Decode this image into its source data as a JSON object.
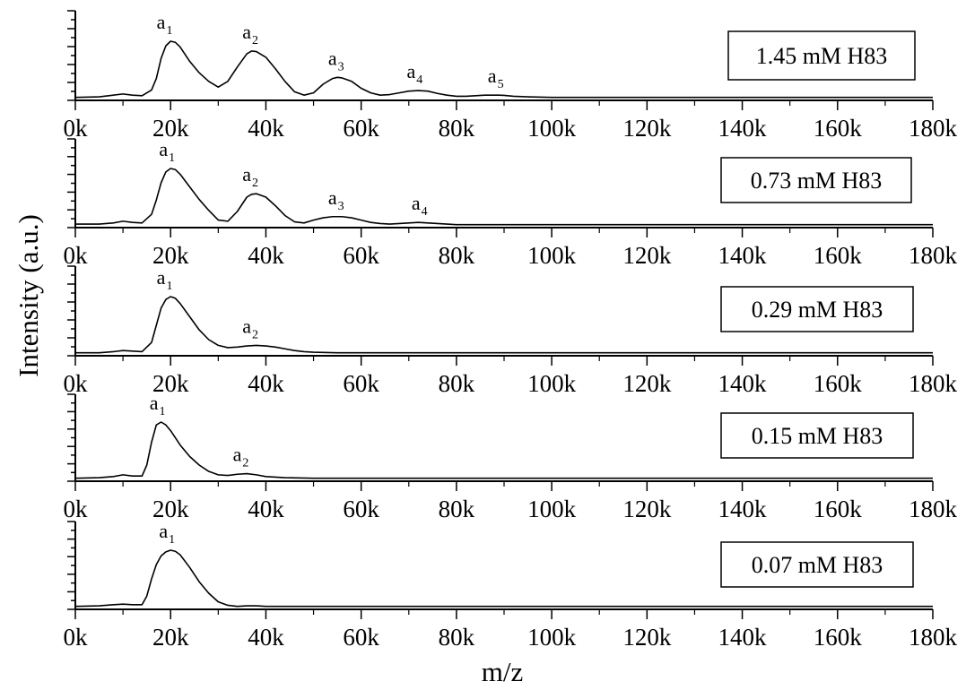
{
  "figure": {
    "ylabel": "Intensity (a.u.)",
    "xlabel": "m/z"
  },
  "chart_data": {
    "type": "line",
    "xlabel": "m/z",
    "ylabel": "Intensity (a.u.)",
    "xlim": [
      0,
      180000
    ],
    "ylim": [
      0,
      1
    ],
    "x_tick_values": [
      0,
      20000,
      40000,
      60000,
      80000,
      100000,
      120000,
      140000,
      160000,
      180000
    ],
    "x_tick_labels": [
      "0k",
      "20k",
      "40k",
      "60k",
      "80k",
      "100k",
      "120k",
      "140k",
      "160k",
      "180k"
    ],
    "grid": false,
    "legend_position": "top-right",
    "panels": [
      {
        "label": "1.45 mM H83",
        "series": [
          {
            "x": [
              0,
              5000,
              8000,
              10000,
              12000,
              14000,
              16000,
              17000,
              18000,
              19000,
              20000,
              21000,
              22000,
              24000,
              26000,
              28000,
              30000,
              32000,
              34000,
              36000,
              37000,
              38000,
              40000,
              42000,
              44000,
              46000,
              48000,
              50000,
              52000,
              54000,
              55000,
              56000,
              58000,
              60000,
              62000,
              64000,
              66000,
              68000,
              70000,
              72000,
              74000,
              76000,
              78000,
              80000,
              82000,
              84000,
              86000,
              88000,
              89000,
              90000,
              92000,
              95000,
              100000,
              110000,
              120000,
              130000,
              140000,
              150000,
              160000,
              170000,
              180000
            ],
            "y": [
              0.02,
              0.03,
              0.06,
              0.08,
              0.06,
              0.05,
              0.15,
              0.35,
              0.7,
              0.92,
              1.0,
              0.98,
              0.9,
              0.65,
              0.45,
              0.3,
              0.2,
              0.3,
              0.55,
              0.78,
              0.83,
              0.82,
              0.72,
              0.52,
              0.3,
              0.12,
              0.06,
              0.1,
              0.25,
              0.35,
              0.37,
              0.36,
              0.3,
              0.18,
              0.1,
              0.06,
              0.07,
              0.1,
              0.13,
              0.14,
              0.13,
              0.09,
              0.06,
              0.04,
              0.04,
              0.05,
              0.06,
              0.06,
              0.06,
              0.055,
              0.04,
              0.03,
              0.02,
              0.02,
              0.02,
              0.02,
              0.02,
              0.02,
              0.02,
              0.02,
              0.02
            ]
          }
        ],
        "peaks": [
          {
            "main": "a",
            "sub": "1",
            "x": 19500,
            "y": 1.0
          },
          {
            "main": "a",
            "sub": "2",
            "x": 37500,
            "y": 0.83
          },
          {
            "main": "a",
            "sub": "3",
            "x": 55500,
            "y": 0.37
          },
          {
            "main": "a",
            "sub": "4",
            "x": 72000,
            "y": 0.14
          },
          {
            "main": "a",
            "sub": "5",
            "x": 89000,
            "y": 0.06
          }
        ]
      },
      {
        "label": "0.73 mM H83",
        "series": [
          {
            "x": [
              0,
              5000,
              8000,
              10000,
              12000,
              14000,
              16000,
              17000,
              18000,
              19000,
              20000,
              21000,
              22000,
              24000,
              26000,
              28000,
              30000,
              32000,
              34000,
              36000,
              37000,
              38000,
              40000,
              42000,
              44000,
              46000,
              48000,
              50000,
              52000,
              54000,
              56000,
              58000,
              60000,
              62000,
              64000,
              66000,
              68000,
              70000,
              72000,
              74000,
              76000,
              78000,
              80000,
              90000,
              100000,
              120000,
              140000,
              160000,
              180000
            ],
            "y": [
              0.03,
              0.03,
              0.05,
              0.08,
              0.06,
              0.05,
              0.2,
              0.45,
              0.75,
              0.94,
              1.0,
              0.98,
              0.9,
              0.68,
              0.46,
              0.27,
              0.1,
              0.08,
              0.25,
              0.5,
              0.55,
              0.56,
              0.5,
              0.35,
              0.18,
              0.07,
              0.05,
              0.1,
              0.14,
              0.16,
              0.16,
              0.14,
              0.1,
              0.06,
              0.04,
              0.03,
              0.04,
              0.05,
              0.06,
              0.05,
              0.04,
              0.03,
              0.02,
              0.02,
              0.02,
              0.02,
              0.02,
              0.02,
              0.02
            ]
          }
        ],
        "peaks": [
          {
            "main": "a",
            "sub": "1",
            "x": 20000,
            "y": 1.0
          },
          {
            "main": "a",
            "sub": "2",
            "x": 37500,
            "y": 0.56
          },
          {
            "main": "a",
            "sub": "3",
            "x": 55500,
            "y": 0.16
          },
          {
            "main": "a",
            "sub": "4",
            "x": 73000,
            "y": 0.06
          }
        ]
      },
      {
        "label": "0.29 mM H83",
        "series": [
          {
            "x": [
              0,
              5000,
              8000,
              10000,
              12000,
              14000,
              16000,
              17000,
              18000,
              19000,
              20000,
              21000,
              22000,
              24000,
              26000,
              28000,
              30000,
              32000,
              34000,
              36000,
              38000,
              40000,
              42000,
              44000,
              46000,
              48000,
              50000,
              55000,
              60000,
              80000,
              100000,
              120000,
              140000,
              160000,
              180000
            ],
            "y": [
              0.02,
              0.02,
              0.04,
              0.06,
              0.05,
              0.04,
              0.2,
              0.5,
              0.8,
              0.95,
              1.0,
              0.97,
              0.88,
              0.65,
              0.42,
              0.25,
              0.15,
              0.11,
              0.12,
              0.14,
              0.15,
              0.14,
              0.12,
              0.09,
              0.06,
              0.04,
              0.03,
              0.02,
              0.02,
              0.02,
              0.02,
              0.02,
              0.02,
              0.02,
              0.02
            ]
          }
        ],
        "peaks": [
          {
            "main": "a",
            "sub": "1",
            "x": 19500,
            "y": 1.0
          },
          {
            "main": "a",
            "sub": "2",
            "x": 37500,
            "y": 0.15
          }
        ]
      },
      {
        "label": "0.15 mM H83",
        "series": [
          {
            "x": [
              0,
              5000,
              8000,
              10000,
              12000,
              14000,
              15000,
              16000,
              17000,
              18000,
              19000,
              20000,
              22000,
              24000,
              26000,
              28000,
              30000,
              32000,
              34000,
              36000,
              38000,
              40000,
              44000,
              50000,
              60000,
              80000,
              100000,
              120000,
              140000,
              160000,
              180000
            ],
            "y": [
              0.02,
              0.03,
              0.05,
              0.08,
              0.06,
              0.06,
              0.25,
              0.65,
              0.95,
              1.0,
              0.95,
              0.85,
              0.6,
              0.4,
              0.25,
              0.14,
              0.08,
              0.07,
              0.09,
              0.1,
              0.08,
              0.05,
              0.03,
              0.02,
              0.02,
              0.02,
              0.02,
              0.02,
              0.02,
              0.02,
              0.02
            ]
          }
        ],
        "peaks": [
          {
            "main": "a",
            "sub": "1",
            "x": 18000,
            "y": 1.0
          },
          {
            "main": "a",
            "sub": "2",
            "x": 35500,
            "y": 0.1
          }
        ]
      },
      {
        "label": "0.07 mM H83",
        "series": [
          {
            "x": [
              0,
              5000,
              8000,
              10000,
              12000,
              14000,
              15000,
              16000,
              17000,
              18000,
              19000,
              20000,
              21000,
              22000,
              24000,
              26000,
              28000,
              30000,
              32000,
              34000,
              36000,
              38000,
              40000,
              44000,
              50000,
              60000,
              80000,
              100000,
              120000,
              140000,
              160000,
              180000
            ],
            "y": [
              0.02,
              0.03,
              0.05,
              0.06,
              0.05,
              0.05,
              0.2,
              0.5,
              0.75,
              0.9,
              0.97,
              1.0,
              0.98,
              0.92,
              0.7,
              0.45,
              0.25,
              0.1,
              0.04,
              0.02,
              0.03,
              0.03,
              0.02,
              0.02,
              0.02,
              0.02,
              0.02,
              0.02,
              0.02,
              0.02,
              0.02,
              0.02
            ]
          }
        ],
        "peaks": [
          {
            "main": "a",
            "sub": "1",
            "x": 20000,
            "y": 1.0
          }
        ]
      }
    ]
  }
}
